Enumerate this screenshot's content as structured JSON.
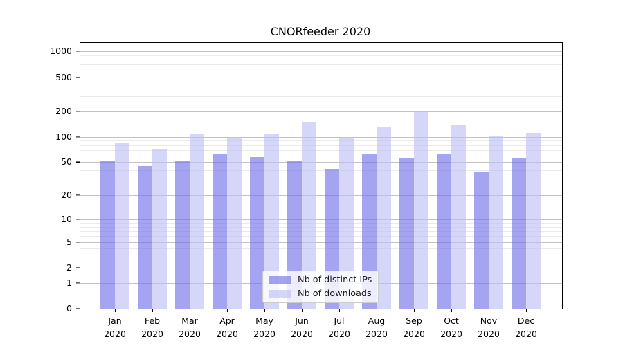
{
  "chart_data": {
    "type": "bar",
    "title": "CNORfeeder 2020",
    "categories": [
      "Jan",
      "Feb",
      "Mar",
      "Apr",
      "May",
      "Jun",
      "Jul",
      "Aug",
      "Sep",
      "Oct",
      "Nov",
      "Dec"
    ],
    "category_year": "2020",
    "series": [
      {
        "name": "Nb of distinct IPs",
        "color": "rgba(108,108,232,0.62)",
        "values": [
          52,
          45,
          51,
          62,
          58,
          52,
          42,
          62,
          55,
          63,
          38,
          56
        ]
      },
      {
        "name": "Nb of downloads",
        "color": "rgba(189,189,243,0.62)",
        "values": [
          85,
          72,
          108,
          98,
          109,
          148,
          100,
          132,
          195,
          139,
          103,
          112
        ]
      }
    ],
    "yscale": "log1p",
    "ylim": [
      0,
      1000
    ],
    "ytick_values": [
      0,
      1,
      2,
      5,
      10,
      20,
      50,
      100,
      200,
      500,
      1000
    ],
    "ytick_labels": [
      "0",
      "1",
      "2",
      "5",
      "10",
      "20",
      "50",
      "100",
      "200",
      "500",
      "1000"
    ],
    "yminor_values": [
      3,
      4,
      6,
      7,
      8,
      9,
      30,
      40,
      60,
      70,
      80,
      90,
      300,
      400,
      600,
      700,
      800,
      900
    ],
    "grid": true,
    "legend_position": "lower center"
  },
  "colors": {
    "major_grid": "#c3c3c3",
    "minor_grid": "#eaeaea",
    "axis": "#000000"
  }
}
